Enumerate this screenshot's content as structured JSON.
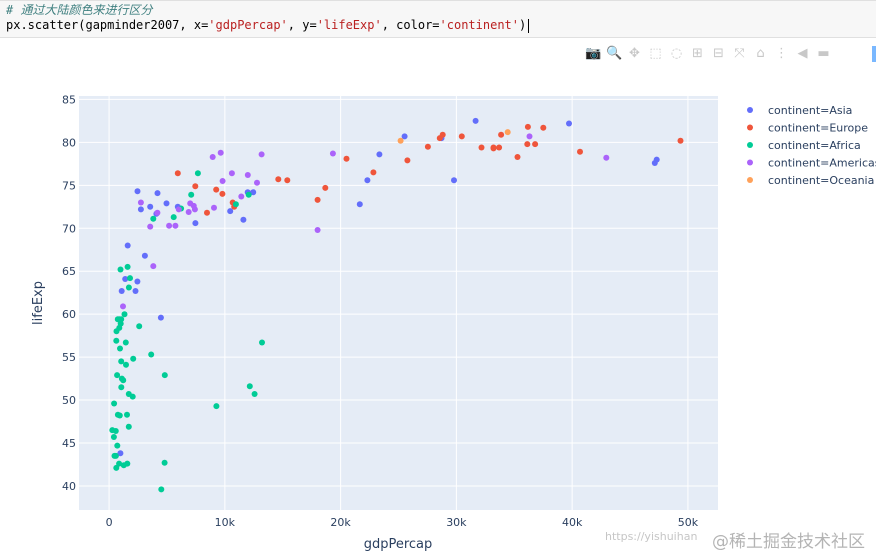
{
  "code": {
    "comment": "# 通过大陆颜色来进行区分",
    "line": {
      "prefix": "px.scatter(gapminder2007, x=",
      "x_arg": "'gdpPercap'",
      "sep1": ", y=",
      "y_arg": "'lifeExp'",
      "sep2": ", color=",
      "color_arg": "'continent'",
      "suffix": ")"
    }
  },
  "modebar": {
    "icons": [
      "camera-icon",
      "zoom-icon",
      "pan-icon",
      "box-select-icon",
      "lasso-icon",
      "zoom-in-icon",
      "zoom-out-icon",
      "autoscale-icon",
      "home-icon",
      "spike-lines-icon",
      "hover-closest-icon",
      "hover-compare-icon",
      "plotly-logo-icon"
    ],
    "glyphs": [
      "📷",
      "🔍",
      "✥",
      "⬚",
      "◌",
      "⊞",
      "⊟",
      "⤧",
      "⌂",
      "⋮",
      "◀",
      "▬",
      ""
    ]
  },
  "watermark": {
    "left": "https://yishuihan",
    "right": "@稀土掘金技术社区"
  },
  "chart_data": {
    "type": "scatter",
    "xlabel": "gdpPercap",
    "ylabel": "lifeExp",
    "xlim": [
      -2600,
      52600
    ],
    "ylim": [
      37.2,
      85.4
    ],
    "xticks": [
      0,
      10000,
      20000,
      30000,
      40000,
      50000
    ],
    "xtick_labels": [
      "0",
      "10k",
      "20k",
      "30k",
      "40k",
      "50k"
    ],
    "yticks": [
      40,
      45,
      50,
      55,
      60,
      65,
      70,
      75,
      80,
      85
    ],
    "ytick_labels": [
      "40",
      "45",
      "50",
      "55",
      "60",
      "65",
      "70",
      "75",
      "80",
      "85"
    ],
    "grid": true,
    "legend_position": "right",
    "series": [
      {
        "name": "continent=Asia",
        "color": "#636efa",
        "points": [
          [
            975,
            43.8
          ],
          [
            1391,
            64.1
          ],
          [
            2452,
            74.3
          ],
          [
            3548,
            72.5
          ],
          [
            4959,
            72.9
          ],
          [
            4472,
            59.6
          ],
          [
            2749,
            72.2
          ],
          [
            7458,
            70.6
          ],
          [
            11606,
            71.0
          ],
          [
            11977,
            74.2
          ],
          [
            12452,
            74.2
          ],
          [
            28718,
            80.5
          ],
          [
            31656,
            82.5
          ],
          [
            39725,
            82.2
          ],
          [
            23348,
            78.6
          ],
          [
            47307,
            78.0
          ],
          [
            47143,
            77.6
          ],
          [
            25523,
            80.7
          ],
          [
            21655,
            72.8
          ],
          [
            22316,
            75.6
          ],
          [
            29796,
            75.6
          ],
          [
            3095,
            66.8
          ],
          [
            2442,
            63.8
          ],
          [
            4185,
            74.1
          ],
          [
            4090,
            71.7
          ],
          [
            2281,
            62.7
          ],
          [
            10461,
            72.0
          ],
          [
            5937,
            72.5
          ],
          [
            1603,
            68.0
          ],
          [
            1091,
            62.7
          ]
        ]
      },
      {
        "name": "continent=Europe",
        "color": "#ef553b",
        "points": [
          [
            5937,
            76.4
          ],
          [
            36126,
            79.8
          ],
          [
            33693,
            79.4
          ],
          [
            7446,
            74.9
          ],
          [
            10681,
            73.0
          ],
          [
            14619,
            75.7
          ],
          [
            22833,
            76.5
          ],
          [
            35278,
            78.3
          ],
          [
            33207,
            79.3
          ],
          [
            30470,
            80.7
          ],
          [
            32170,
            79.4
          ],
          [
            27538,
            79.5
          ],
          [
            18009,
            73.3
          ],
          [
            36181,
            81.8
          ],
          [
            40676,
            78.9
          ],
          [
            28570,
            80.5
          ],
          [
            9254,
            74.5
          ],
          [
            49357,
            80.2
          ],
          [
            15390,
            75.6
          ],
          [
            20510,
            78.1
          ],
          [
            10808,
            72.5
          ],
          [
            9787,
            74.0
          ],
          [
            18678,
            74.7
          ],
          [
            25768,
            77.9
          ],
          [
            28821,
            80.9
          ],
          [
            33860,
            80.9
          ],
          [
            37506,
            81.7
          ],
          [
            8458,
            71.8
          ],
          [
            33203,
            79.4
          ],
          [
            36798,
            79.8
          ]
        ]
      },
      {
        "name": "continent=Africa",
        "color": "#00cc96",
        "points": [
          [
            6223,
            72.3
          ],
          [
            4797,
            42.7
          ],
          [
            1441,
            56.7
          ],
          [
            12570,
            50.7
          ],
          [
            1217,
            52.3
          ],
          [
            430,
            49.6
          ],
          [
            2042,
            50.4
          ],
          [
            706,
            44.7
          ],
          [
            1704,
            50.7
          ],
          [
            986,
            65.2
          ],
          [
            278,
            46.5
          ],
          [
            3633,
            55.3
          ],
          [
            1545,
            48.3
          ],
          [
            2082,
            54.8
          ],
          [
            5581,
            71.3
          ],
          [
            12154,
            51.6
          ],
          [
            641,
            58.0
          ],
          [
            690,
            52.9
          ],
          [
            13206,
            56.7
          ],
          [
            752,
            59.4
          ],
          [
            1328,
            60.0
          ],
          [
            942,
            56.0
          ],
          [
            579,
            46.4
          ],
          [
            1463,
            54.1
          ],
          [
            1569,
            42.6
          ],
          [
            415,
            45.7
          ],
          [
            12057,
            73.9
          ],
          [
            1045,
            59.4
          ],
          [
            759,
            48.3
          ],
          [
            1042,
            54.5
          ],
          [
            1803,
            64.2
          ],
          [
            10957,
            72.8
          ],
          [
            620,
            42.1
          ],
          [
            4811,
            52.9
          ],
          [
            620,
            56.9
          ],
          [
            1698,
            46.9
          ],
          [
            882,
            59.4
          ],
          [
            1598,
            65.5
          ],
          [
            1713,
            63.1
          ],
          [
            863,
            42.6
          ],
          [
            926,
            48.2
          ],
          [
            9270,
            49.3
          ],
          [
            2602,
            58.6
          ],
          [
            4513,
            39.6
          ],
          [
            1107,
            52.5
          ],
          [
            883,
            58.4
          ],
          [
            7093,
            73.9
          ],
          [
            1056,
            51.5
          ],
          [
            1271,
            42.4
          ],
          [
            470,
            43.5
          ],
          [
            7670,
            76.4
          ],
          [
            586,
            43.5
          ],
          [
            3820,
            71.1
          ],
          [
            1004,
            58.9
          ]
        ]
      },
      {
        "name": "continent=Americas",
        "color": "#ab63fa",
        "points": [
          [
            12779,
            75.3
          ],
          [
            3822,
            65.6
          ],
          [
            9066,
            72.4
          ],
          [
            36319,
            80.7
          ],
          [
            13172,
            78.6
          ],
          [
            7007,
            72.9
          ],
          [
            9645,
            78.8
          ],
          [
            8948,
            78.3
          ],
          [
            6025,
            72.2
          ],
          [
            6874,
            71.9
          ],
          [
            5728,
            70.3
          ],
          [
            5186,
            70.3
          ],
          [
            1202,
            60.9
          ],
          [
            3548,
            70.2
          ],
          [
            7321,
            72.6
          ],
          [
            11978,
            76.2
          ],
          [
            2749,
            73.0
          ],
          [
            9809,
            75.5
          ],
          [
            4173,
            71.8
          ],
          [
            7409,
            72.2
          ],
          [
            18009,
            69.8
          ],
          [
            19329,
            78.7
          ],
          [
            10611,
            76.4
          ],
          [
            42952,
            78.2
          ],
          [
            11416,
            73.7
          ]
        ]
      },
      {
        "name": "continent=Oceania",
        "color": "#ffa15a",
        "points": [
          [
            34435,
            81.2
          ],
          [
            25185,
            80.2
          ]
        ]
      }
    ]
  }
}
